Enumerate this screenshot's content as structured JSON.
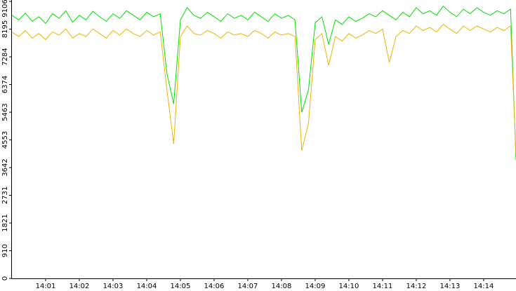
{
  "chart_data": {
    "type": "line",
    "x": [
      0,
      0.2,
      0.4,
      0.6,
      0.8,
      1,
      1.2,
      1.4,
      1.6,
      1.8,
      2,
      2.2,
      2.4,
      2.6,
      2.8,
      3,
      3.2,
      3.4,
      3.6,
      3.8,
      4,
      4.2,
      4.4,
      4.6,
      4.8,
      5,
      5.2,
      5.4,
      5.6,
      5.8,
      6,
      6.2,
      6.4,
      6.6,
      6.8,
      7,
      7.2,
      7.4,
      7.6,
      7.8,
      8,
      8.2,
      8.4,
      8.6,
      8.8,
      9,
      9.2,
      9.4,
      9.6,
      9.8,
      10,
      10.2,
      10.4,
      10.6,
      10.8,
      11,
      11.2,
      11.4,
      11.6,
      11.8,
      12,
      12.2,
      12.4,
      12.6,
      12.8,
      13,
      13.2,
      13.4,
      13.6,
      13.8,
      14,
      14.2,
      14.4,
      14.6,
      14.8,
      14.96
    ],
    "series": [
      {
        "color": "#00e000",
        "values": [
          8650,
          8500,
          8720,
          8450,
          8600,
          8380,
          8700,
          8550,
          8800,
          8420,
          8650,
          8500,
          8780,
          8600,
          8450,
          8700,
          8550,
          8800,
          8650,
          8500,
          8750,
          8600,
          8700,
          6730,
          5740,
          8500,
          8900,
          8650,
          8550,
          8750,
          8600,
          8450,
          8700,
          8550,
          8650,
          8500,
          8750,
          8600,
          8450,
          8700,
          8550,
          8650,
          8500,
          5460,
          6200,
          8400,
          8600,
          7700,
          8500,
          8350,
          8600,
          8450,
          8550,
          8700,
          8600,
          8800,
          8650,
          8500,
          8750,
          8600,
          8900,
          8700,
          8800,
          8650,
          8950,
          8750,
          8600,
          8850,
          8700,
          8900,
          8750,
          8650,
          8800,
          8700,
          8850,
          3895
        ]
      },
      {
        "color": "#f0b400",
        "values": [
          8100,
          7950,
          8150,
          7900,
          8050,
          7850,
          8100,
          8000,
          8200,
          7900,
          8050,
          7950,
          8200,
          8050,
          7900,
          8150,
          8000,
          8200,
          8050,
          7950,
          8150,
          8000,
          8100,
          6200,
          4425,
          7950,
          8300,
          8050,
          8000,
          8150,
          8050,
          7900,
          8100,
          8000,
          8050,
          7950,
          8150,
          8050,
          7900,
          8100,
          8000,
          8050,
          7950,
          4195,
          5100,
          7850,
          8050,
          7000,
          7950,
          7800,
          8050,
          7900,
          8000,
          8150,
          8050,
          8200,
          7100,
          7950,
          8150,
          8050,
          8300,
          8150,
          8250,
          8100,
          8350,
          8200,
          8050,
          8300,
          8150,
          8300,
          8200,
          8100,
          8250,
          8150,
          8300,
          4100
        ]
      }
    ],
    "xlim": [
      0,
      14.96
    ],
    "xticks": [
      {
        "value": 1,
        "label": "14:01"
      },
      {
        "value": 2,
        "label": "14:02"
      },
      {
        "value": 3,
        "label": "14:03"
      },
      {
        "value": 4,
        "label": "14:04"
      },
      {
        "value": 5,
        "label": "14:05"
      },
      {
        "value": 6,
        "label": "14:06"
      },
      {
        "value": 7,
        "label": "14:07"
      },
      {
        "value": 8,
        "label": "14:08"
      },
      {
        "value": 9,
        "label": "14:09"
      },
      {
        "value": 10,
        "label": "14:10"
      },
      {
        "value": 11,
        "label": "14:11"
      },
      {
        "value": 12,
        "label": "14:12"
      },
      {
        "value": 13,
        "label": "14:13"
      },
      {
        "value": 14,
        "label": "14:14"
      }
    ],
    "ylim": [
      0,
      9106
    ],
    "yticks": [
      0,
      910,
      1821,
      2731,
      3642,
      4553,
      5463,
      6374,
      7284,
      8195,
      9106
    ]
  }
}
